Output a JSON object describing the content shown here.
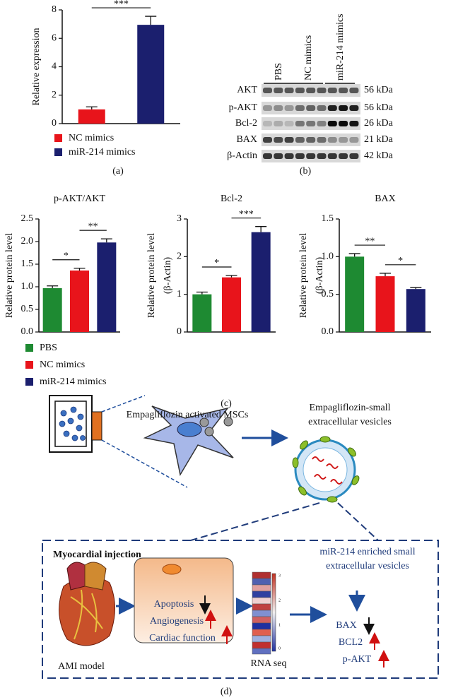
{
  "chart_data": [
    {
      "type": "bar",
      "ylabel": [
        "Relative expression"
      ],
      "values": [
        1.0,
        6.95
      ],
      "errors": [
        0.18,
        0.6
      ],
      "colors": [
        "#e8141b",
        "#1b1f6e"
      ],
      "legend": [
        "NC mimics",
        "miR-214 mimics"
      ],
      "ylim": [
        0,
        8
      ],
      "yticks": [
        0,
        2,
        4,
        6,
        8
      ],
      "annotations": [
        "***"
      ],
      "panel": "(a)"
    },
    {
      "type": "bar",
      "title": "p-AKT/AKT",
      "ylabel": [
        "Relative protein level"
      ],
      "values": [
        0.97,
        1.36,
        1.98
      ],
      "errors": [
        0.05,
        0.05,
        0.08
      ],
      "colors": [
        "#1e8a32",
        "#e8141b",
        "#1b1f6e"
      ],
      "legend": [
        "PBS",
        "NC mimics",
        "miR-214 mimics"
      ],
      "ylim": [
        0,
        2.5
      ],
      "yticks": [
        {
          "value": 0,
          "label": "0.0"
        },
        0.5,
        {
          "value": 1,
          "label": "1.0"
        },
        1.5,
        {
          "value": 2,
          "label": "2.0"
        },
        2.5
      ],
      "annotations": [
        "*",
        "**"
      ]
    },
    {
      "type": "bar",
      "title": "Bcl-2",
      "ylabel": [
        "Relative protein level",
        "(β-Actin)"
      ],
      "values": [
        1.0,
        1.45,
        2.65
      ],
      "errors": [
        0.06,
        0.05,
        0.15
      ],
      "colors": [
        "#1e8a32",
        "#e8141b",
        "#1b1f6e"
      ],
      "ylim": [
        0,
        3
      ],
      "yticks": [
        0,
        1,
        2,
        3
      ],
      "annotations": [
        "*",
        "***"
      ]
    },
    {
      "type": "bar",
      "title": "BAX",
      "ylabel": [
        "Relative protein level",
        "(β-Actin)"
      ],
      "values": [
        1.0,
        0.74,
        0.57
      ],
      "errors": [
        0.04,
        0.04,
        0.02
      ],
      "colors": [
        "#1e8a32",
        "#e8141b",
        "#1b1f6e"
      ],
      "ylim": [
        0,
        1.5
      ],
      "yticks": [
        {
          "value": 0,
          "label": "0.0"
        },
        0.5,
        {
          "value": 1,
          "label": "1.0"
        },
        1.5
      ],
      "annotations": [
        "**",
        "*"
      ],
      "panel": "(c)"
    }
  ],
  "blot": {
    "lanes": [
      "PBS",
      "NC mimics",
      "miR-214 mimics"
    ],
    "rows": [
      {
        "protein": "AKT",
        "size": "56 kDa"
      },
      {
        "protein": "p-AKT",
        "size": "56 kDa"
      },
      {
        "protein": "Bcl-2",
        "size": "26 kDa"
      },
      {
        "protein": "BAX",
        "size": "21 kDa"
      },
      {
        "protein": "β-Actin",
        "size": "42 kDa"
      }
    ],
    "panel": "(b)"
  },
  "diagram": {
    "msc": "Empagliflozin activated MSCs",
    "vesicles": [
      "Empagliflozin-small",
      "extracellular vesicles"
    ],
    "injection": "Myocardial injection",
    "enriched": [
      "miR-214 enriched small",
      "extracellular vesicles"
    ],
    "effects": [
      "Apoptosis",
      "Angiogenesis",
      "Cardiac function"
    ],
    "model": "AMI model",
    "rnaseq": "RNA seq",
    "scale": [
      "3",
      "2",
      "1",
      "0"
    ],
    "targets": [
      "BAX",
      "BCL2",
      "p-AKT"
    ],
    "panel": "(d)"
  }
}
